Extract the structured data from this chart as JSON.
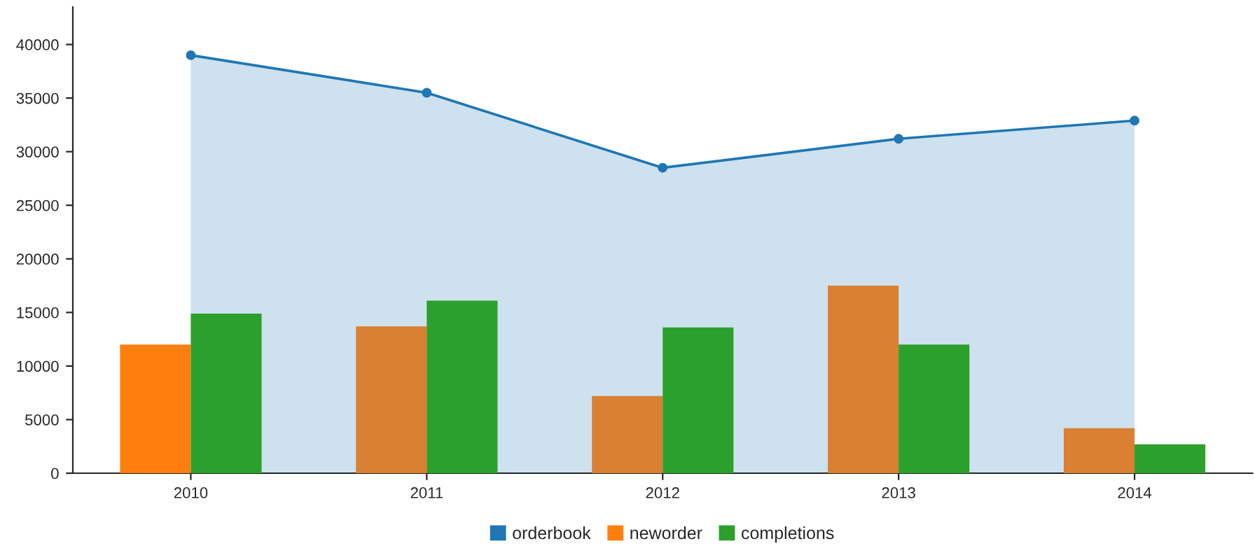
{
  "chart_data": {
    "type": "bar",
    "categories": [
      "2010",
      "2011",
      "2012",
      "2013",
      "2014"
    ],
    "series": [
      {
        "name": "orderbook",
        "type": "area",
        "color": "#1f77b4",
        "values": [
          39000,
          35500,
          28500,
          31200,
          32900
        ]
      },
      {
        "name": "neworder",
        "color": "#ff7f0e",
        "colors": [
          "#ff7f0e",
          "#d98033",
          "#d98033",
          "#d98033",
          "#d98033"
        ],
        "values": [
          12000,
          13700,
          7200,
          17500,
          4200
        ]
      },
      {
        "name": "completions",
        "color": "#2ca02c",
        "values": [
          14900,
          16100,
          13600,
          12000,
          2700
        ]
      }
    ],
    "ylim": [
      0,
      43500
    ],
    "yticks": [
      0,
      5000,
      10000,
      15000,
      20000,
      25000,
      30000,
      35000,
      40000
    ],
    "marker": "circle",
    "grid": false,
    "legend": "bottom"
  }
}
